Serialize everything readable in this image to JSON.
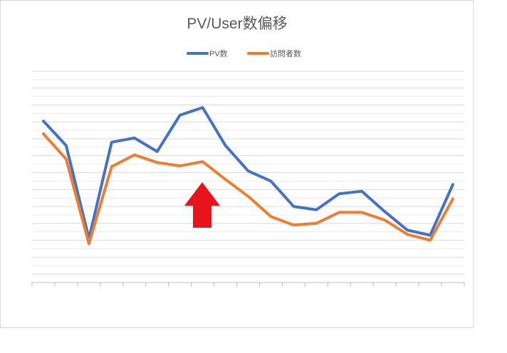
{
  "chart_data": {
    "type": "line",
    "title": "PV/User数偏移",
    "xlabel": "",
    "ylabel": "",
    "legend_position": "top",
    "grid": true,
    "x": [
      1,
      2,
      3,
      4,
      5,
      6,
      7,
      8,
      9,
      10,
      11,
      12,
      13,
      14,
      15,
      16,
      17,
      18,
      19
    ],
    "ylim": [
      0,
      250
    ],
    "series": [
      {
        "name": "PV数",
        "color": "#4472C4",
        "values": [
          191,
          162,
          52,
          166,
          171,
          155,
          198,
          207,
          162,
          132,
          120,
          90,
          86,
          105,
          108,
          84,
          62,
          56,
          116
        ]
      },
      {
        "name": "訪問者数",
        "color": "#ED7D31",
        "values": [
          176,
          146,
          46,
          137,
          151,
          142,
          138,
          143,
          122,
          102,
          78,
          68,
          70,
          83,
          83,
          74,
          57,
          50,
          99
        ]
      }
    ],
    "annotation": {
      "type": "up-arrow",
      "color": "#E8141B"
    }
  }
}
